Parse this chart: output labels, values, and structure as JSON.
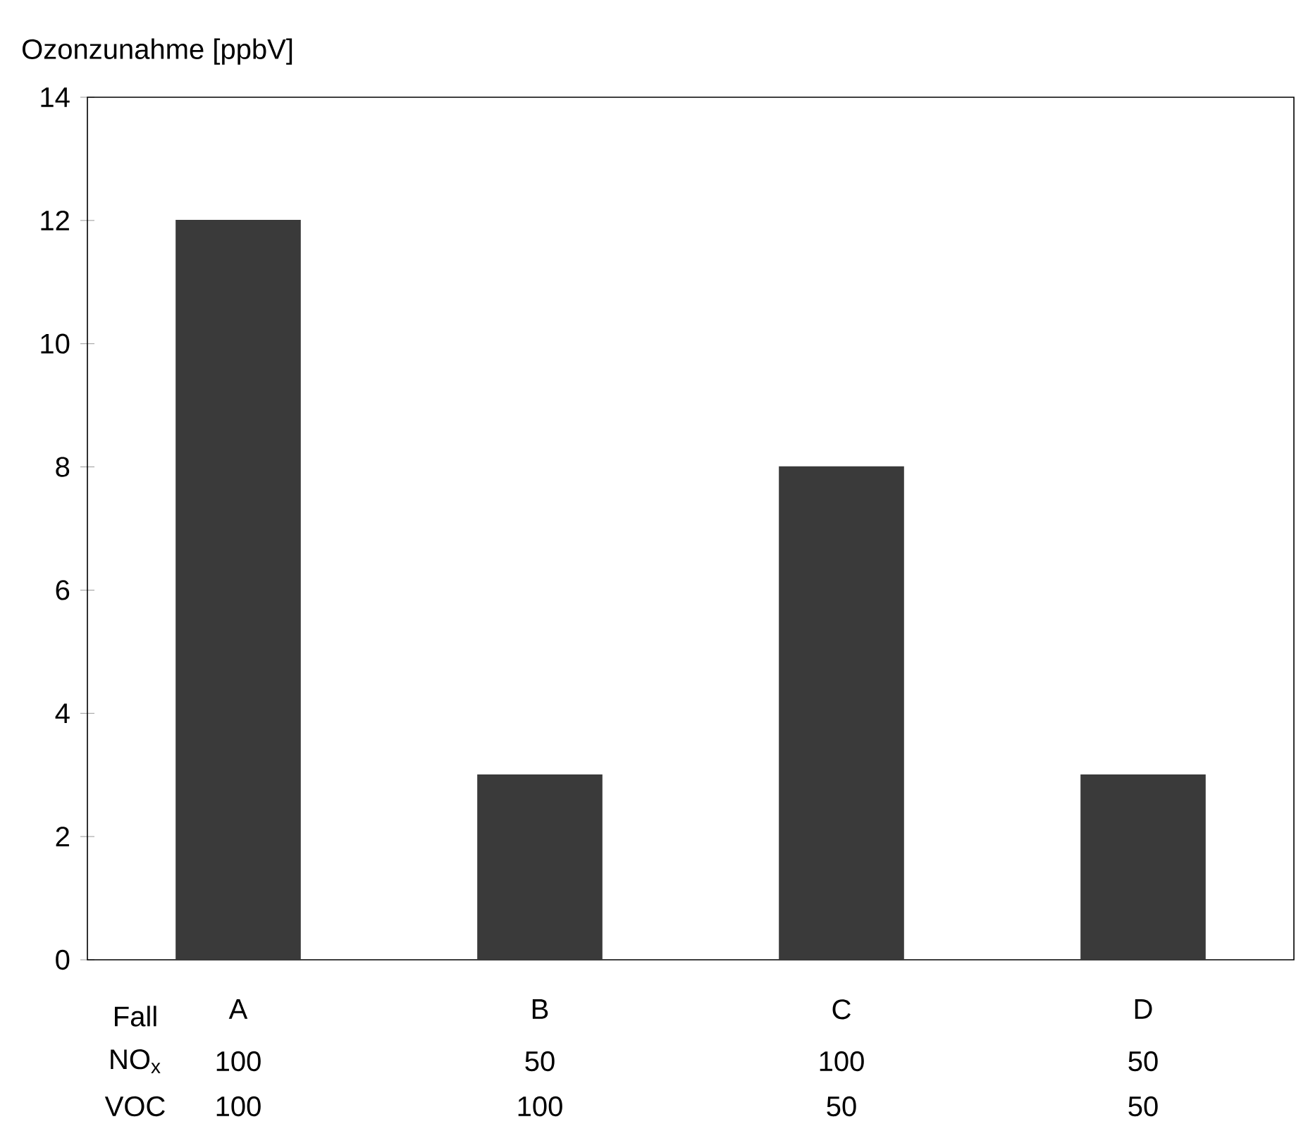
{
  "chart_data": {
    "type": "bar",
    "ylabel": "Ozonzunahme [ppbV]",
    "categories": [
      "A",
      "B",
      "C",
      "D"
    ],
    "values": [
      12,
      3,
      8,
      3
    ],
    "color": "#3a3a3a",
    "ylim": [
      0,
      14
    ],
    "yticks": [
      0,
      2,
      4,
      6,
      8,
      10,
      12,
      14
    ],
    "annotations": [
      "Fall",
      "NO$_{x}$",
      "VOC",
      "100",
      "50",
      "100",
      "50",
      "100",
      "100",
      "50",
      "50"
    ]
  }
}
